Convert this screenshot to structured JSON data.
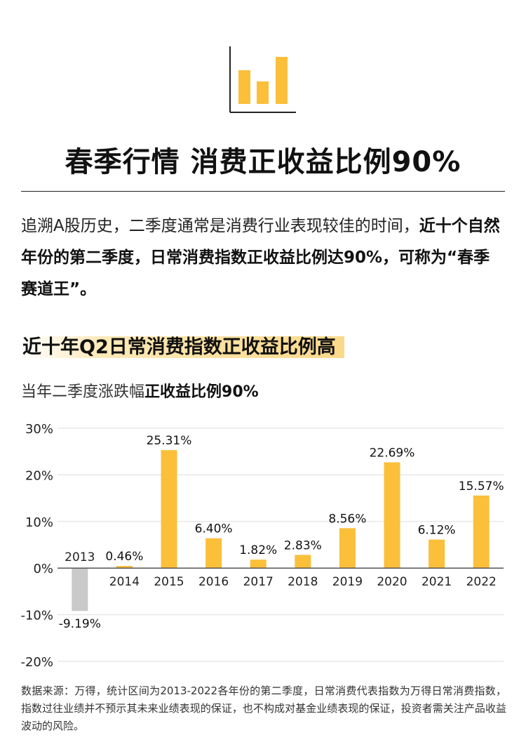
{
  "colors": {
    "positive_bar": "#fbbf3a",
    "negative_bar": "#c9c9c9",
    "grid": "#dddddd",
    "axis": "#555555"
  },
  "icon": "bar-chart-icon",
  "title": "春季行情 消费正收益比例90%",
  "intro": {
    "part1": "追溯A股历史，二季度通常是消费行业表现较佳的时间，",
    "part2": "近十个自然年份的第二季度，日常消费指数正收益比例达90%，可称为“春季赛道王”。"
  },
  "subhead": "近十年Q2日常消费指数正收益比例高",
  "subnote": {
    "part1": "当年二季度涨跌幅",
    "part2": "正收益比例90%"
  },
  "chart_data": {
    "type": "bar",
    "categories": [
      "2013",
      "2014",
      "2015",
      "2016",
      "2017",
      "2018",
      "2019",
      "2020",
      "2021",
      "2022"
    ],
    "values": [
      -9.19,
      0.46,
      25.31,
      6.4,
      1.82,
      2.83,
      8.56,
      22.69,
      6.12,
      15.57
    ],
    "data_labels": [
      "-9.19%",
      "0.46%",
      "25.31%",
      "6.40%",
      "1.82%",
      "2.83%",
      "8.56%",
      "22.69%",
      "6.12%",
      "15.57%"
    ],
    "yticks": [
      30,
      20,
      10,
      0,
      -10,
      -20
    ],
    "ytick_labels": [
      "30%",
      "20%",
      "10%",
      "0%",
      "-10%",
      "-20%"
    ],
    "ylim": [
      -20,
      30
    ],
    "grid": true
  },
  "footnote": "数据来源：万得，统计区间为2013-2022各年份的第二季度，日常消费代表指数为万得日常消费指数，指数过往业绩并不预示其未来业绩表现的保证，也不构成对基金业绩表现的保证，投资者需关注产品收益波动的风险。"
}
